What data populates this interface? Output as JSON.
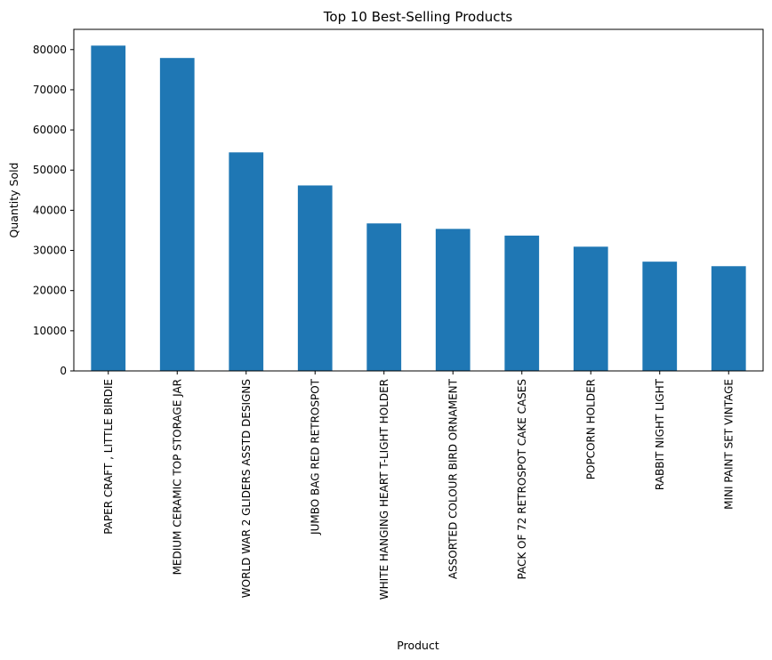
{
  "chart_data": {
    "type": "bar",
    "title": "Top 10 Best-Selling Products",
    "xlabel": "Product",
    "ylabel": "Quantity Sold",
    "categories": [
      "PAPER CRAFT , LITTLE BIRDIE",
      "MEDIUM CERAMIC TOP STORAGE JAR",
      "WORLD WAR 2 GLIDERS ASSTD DESIGNS",
      "JUMBO BAG RED RETROSPOT",
      "WHITE HANGING HEART T-LIGHT HOLDER",
      "ASSORTED COLOUR BIRD ORNAMENT",
      "PACK OF 72 RETROSPOT CAKE CASES",
      "POPCORN HOLDER",
      "RABBIT NIGHT LIGHT",
      "MINI PAINT SET VINTAGE"
    ],
    "values": [
      80995,
      77916,
      54415,
      46181,
      36725,
      35362,
      33693,
      30931,
      27202,
      26076
    ],
    "ylim": [
      0,
      85044
    ],
    "yticks": [
      0,
      10000,
      20000,
      30000,
      40000,
      50000,
      60000,
      70000,
      80000
    ],
    "bar_color": "#1f77b4",
    "grid": false,
    "legend": "none"
  }
}
